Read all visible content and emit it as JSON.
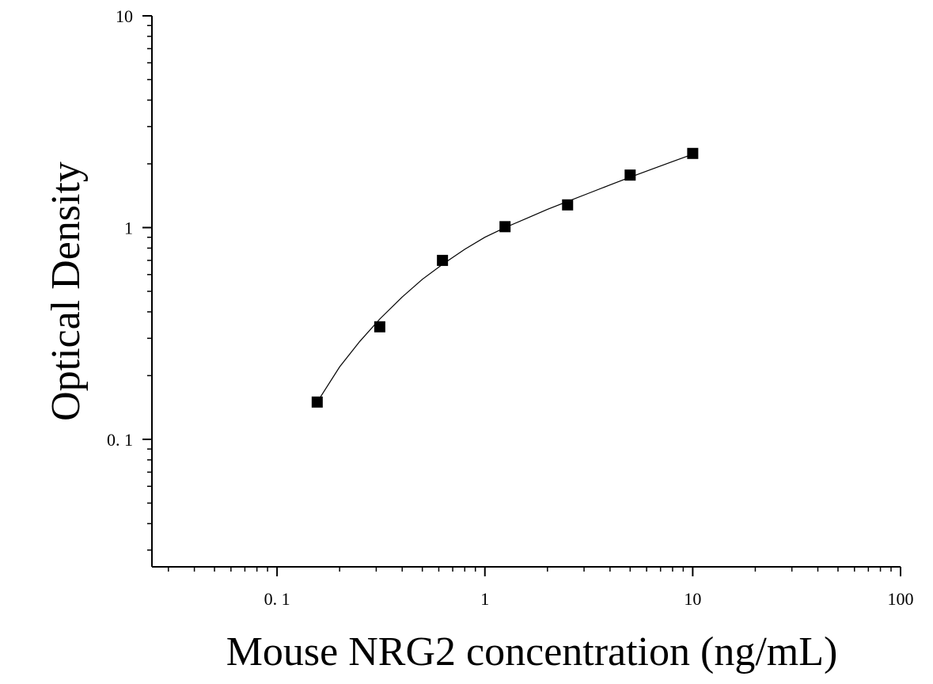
{
  "chart_data": {
    "type": "scatter",
    "title": "",
    "xlabel": "Mouse NRG2 concentration (ng/mL)",
    "ylabel": "Optical Density",
    "xscale": "log",
    "yscale": "log",
    "xlim": [
      0.025,
      100
    ],
    "ylim": [
      0.025,
      10
    ],
    "xticks": [
      {
        "value": 0.1,
        "label": "0. 1"
      },
      {
        "value": 1,
        "label": "1"
      },
      {
        "value": 10,
        "label": "10"
      },
      {
        "value": 100,
        "label": "100"
      }
    ],
    "yticks": [
      {
        "value": 0.1,
        "label": "0. 1"
      },
      {
        "value": 1,
        "label": "1"
      },
      {
        "value": 10,
        "label": "10"
      }
    ],
    "grid": false,
    "legend": "none",
    "marker": "square",
    "marker_color": "#000000",
    "line_color": "#000000",
    "series": [
      {
        "points": [
          {
            "x": 0.156,
            "y": 0.15
          },
          {
            "x": 0.312,
            "y": 0.34
          },
          {
            "x": 0.625,
            "y": 0.7
          },
          {
            "x": 1.25,
            "y": 1.01
          },
          {
            "x": 2.5,
            "y": 1.28
          },
          {
            "x": 5,
            "y": 1.77
          },
          {
            "x": 10,
            "y": 2.24
          }
        ]
      }
    ],
    "fit_curve": {
      "points": [
        {
          "x": 0.156,
          "y": 0.15
        },
        {
          "x": 0.2,
          "y": 0.22
        },
        {
          "x": 0.25,
          "y": 0.29
        },
        {
          "x": 0.312,
          "y": 0.37
        },
        {
          "x": 0.4,
          "y": 0.47
        },
        {
          "x": 0.5,
          "y": 0.57
        },
        {
          "x": 0.625,
          "y": 0.67
        },
        {
          "x": 0.8,
          "y": 0.79
        },
        {
          "x": 1.0,
          "y": 0.9
        },
        {
          "x": 1.25,
          "y": 1.0
        },
        {
          "x": 1.6,
          "y": 1.11
        },
        {
          "x": 2.0,
          "y": 1.22
        },
        {
          "x": 2.5,
          "y": 1.33
        },
        {
          "x": 3.2,
          "y": 1.46
        },
        {
          "x": 4.0,
          "y": 1.59
        },
        {
          "x": 5.0,
          "y": 1.73
        },
        {
          "x": 6.3,
          "y": 1.88
        },
        {
          "x": 8.0,
          "y": 2.05
        },
        {
          "x": 10.0,
          "y": 2.22
        }
      ]
    }
  }
}
